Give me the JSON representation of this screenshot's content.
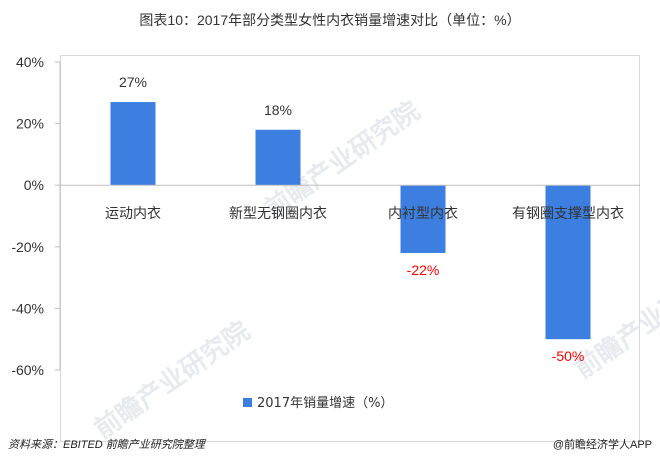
{
  "title": "图表10：2017年部分类型女性内衣销量增速对比（单位：%）",
  "footer": {
    "source": "资料来源：EBITED  前瞻产业研究院整理",
    "brand": "@前瞻经济学人APP"
  },
  "watermark": "前瞻产业研究院",
  "colors": {
    "bar": "#3c7fe0",
    "negative_label": "#ff0000",
    "positive_label": "#333333"
  },
  "chart_data": {
    "type": "bar",
    "categories": [
      "运动内衣",
      "新型无钢圈内衣",
      "内衬型内衣",
      "有钢圈支撑型内衣"
    ],
    "series": [
      {
        "name": "2017年销量增速（%）",
        "values": [
          27,
          18,
          -22,
          -50
        ]
      }
    ],
    "data_labels": [
      "27%",
      "18%",
      "-22%",
      "-50%"
    ],
    "y_ticks": [
      "40%",
      "20%",
      "0%",
      "-20%",
      "-40%",
      "-60%"
    ],
    "ylim": [
      -60,
      40
    ],
    "grid": false,
    "legend_position": "bottom"
  }
}
